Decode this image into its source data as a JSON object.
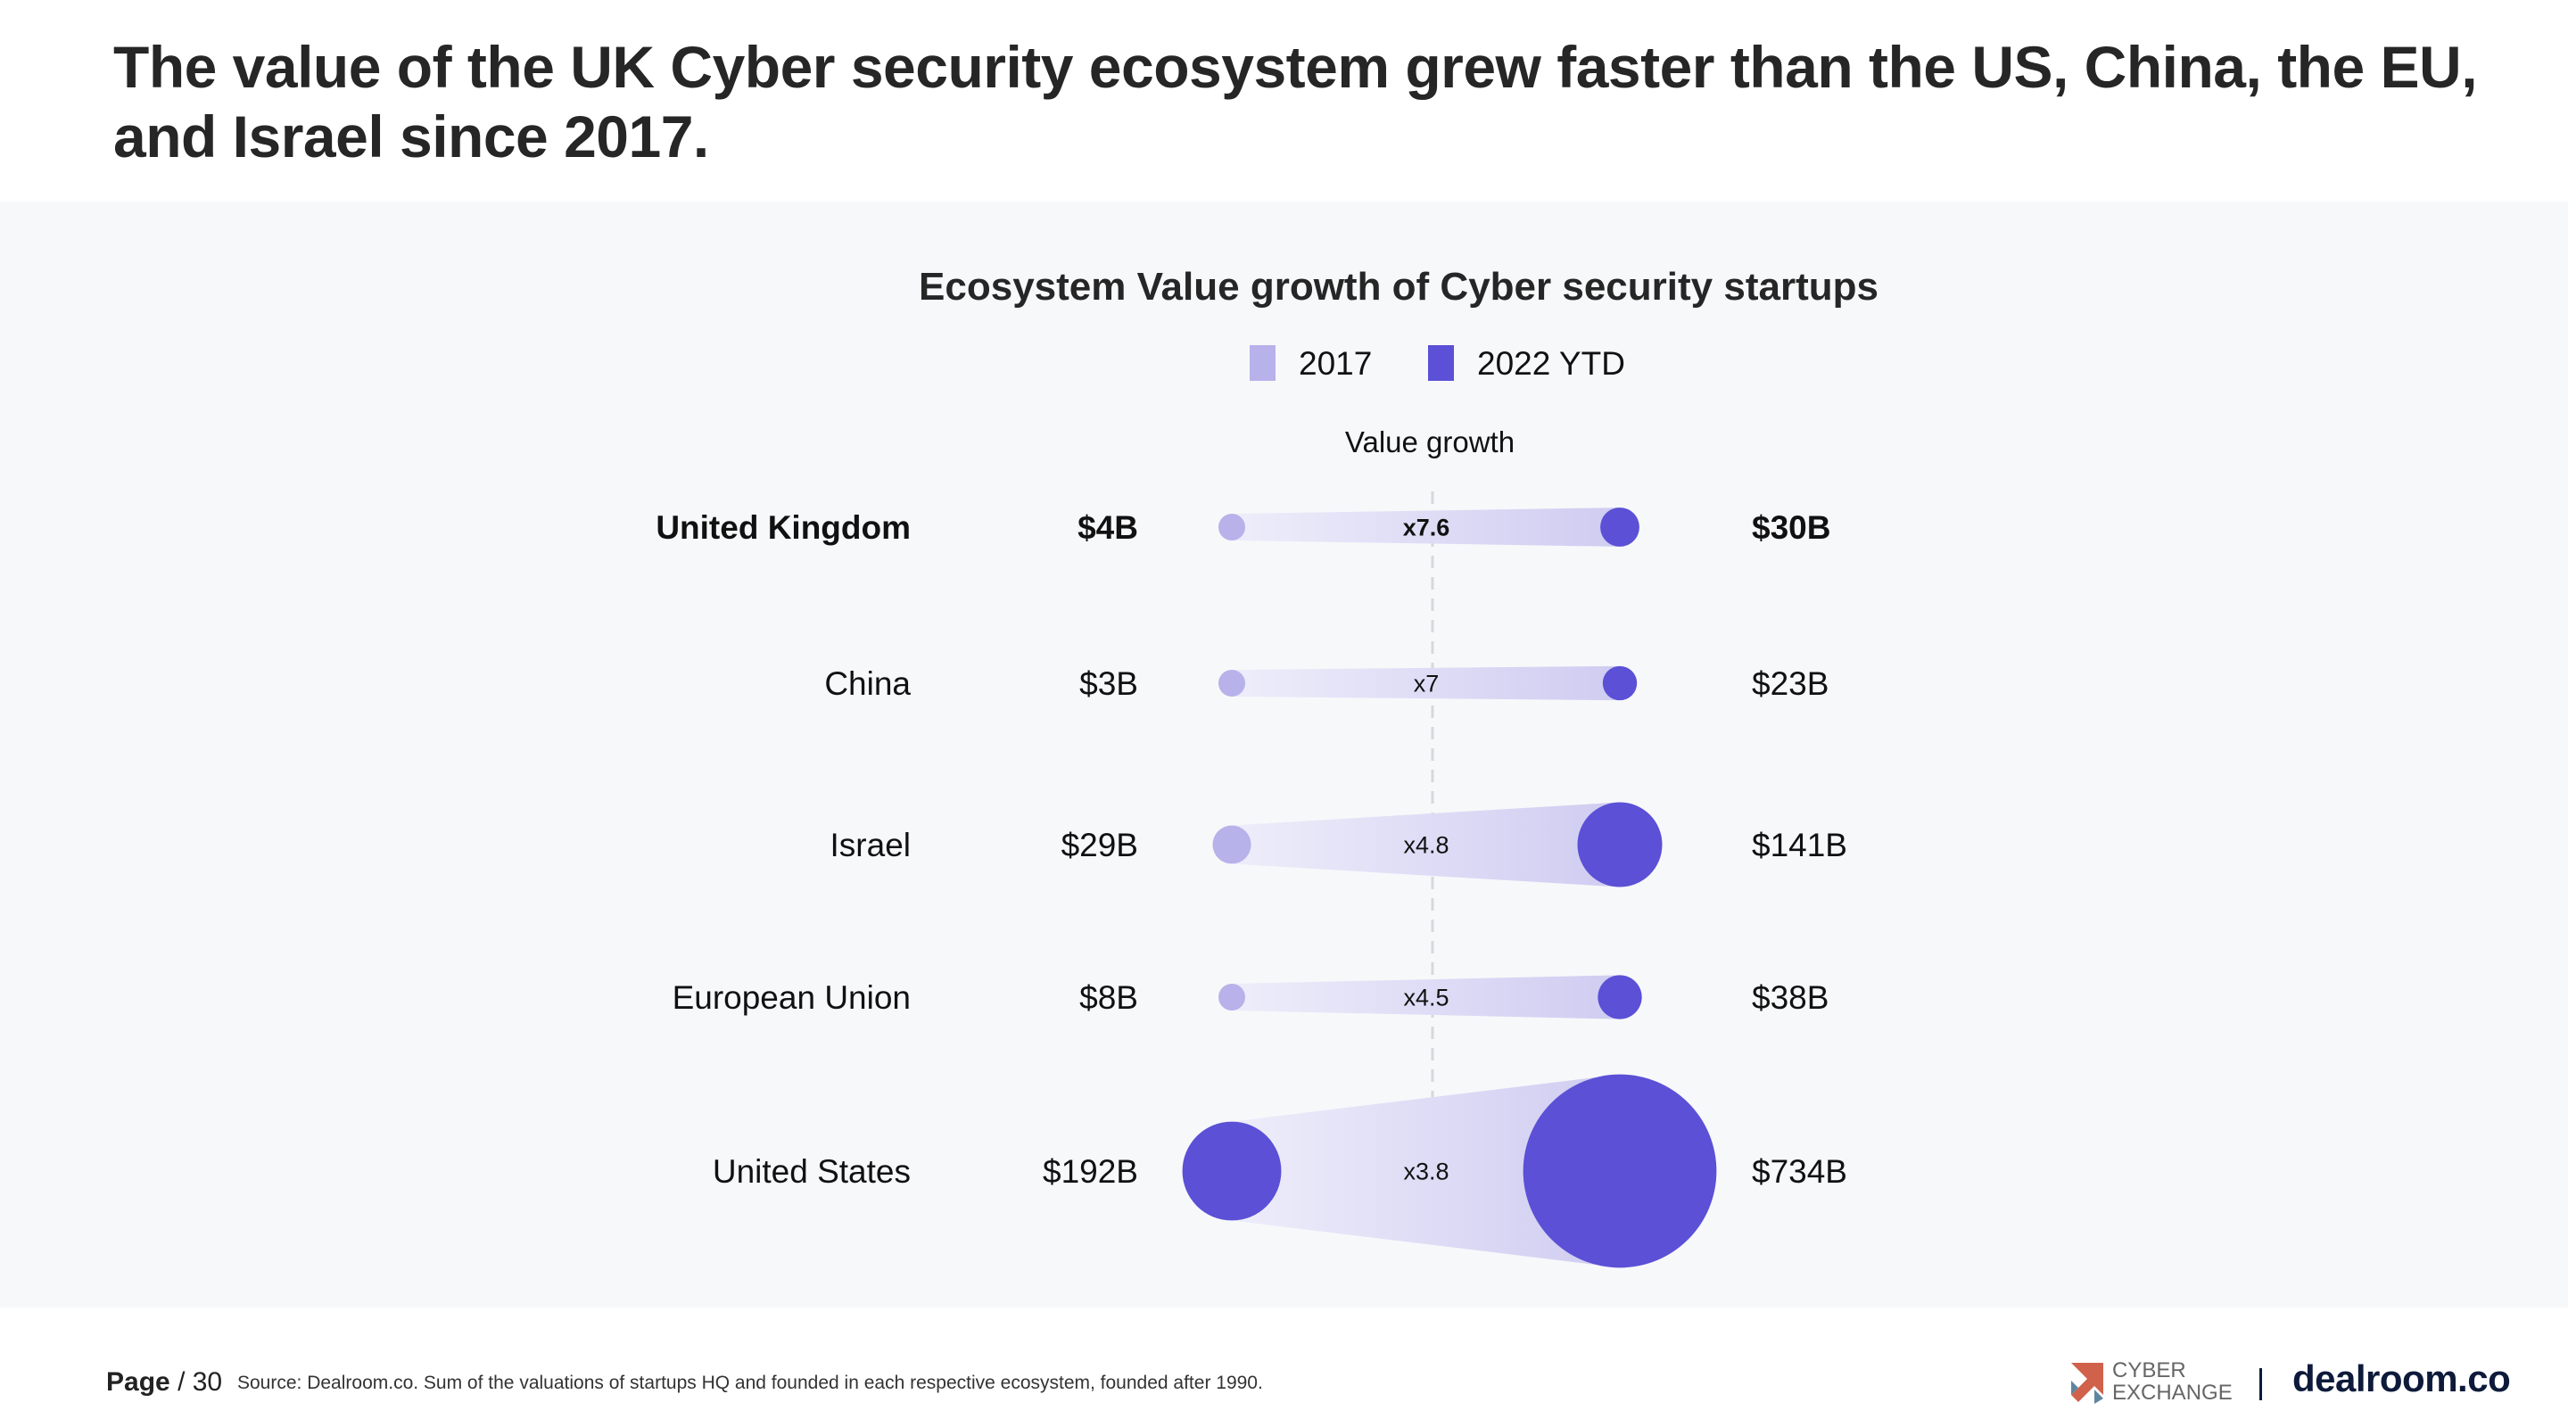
{
  "page": {
    "title": "The value of the UK Cyber security ecosystem grew faster than the US, China, the EU, and Israel since 2017.",
    "footer": {
      "page_label": "Page",
      "page_number": "/ 30",
      "source": "Source: Dealroom.co. Sum of the valuations of startups HQ and founded in each respective ecosystem,  founded after 1990."
    },
    "logos": {
      "cyber_exchange_line1": "CYBER",
      "cyber_exchange_line2": "EXCHANGE",
      "dealroom": "dealroom.co"
    }
  },
  "chart_data": {
    "type": "dumbbell",
    "title": "Ecosystem Value growth of Cyber security startups",
    "growth_header": "Value growth",
    "legend": {
      "placement": "top-center",
      "entries": [
        {
          "label": "2017",
          "color": "#b7b2ea"
        },
        {
          "label": "2022 YTD",
          "color": "#5b50d6"
        }
      ]
    },
    "categories": [
      "United Kingdom",
      "China",
      "Israel",
      "European Union",
      "United States"
    ],
    "highlight": "United Kingdom",
    "series": [
      {
        "name": "2017",
        "values": [
          4,
          3,
          29,
          8,
          192
        ],
        "labels": [
          "$4B",
          "$3B",
          "$29B",
          "$8B",
          "$192B"
        ]
      },
      {
        "name": "2022 YTD",
        "values": [
          30,
          23,
          141,
          38,
          734
        ],
        "labels": [
          "$30B",
          "$23B",
          "$141B",
          "$38B",
          "$734B"
        ]
      }
    ],
    "growth_labels": [
      "x7.6",
      "x7",
      "x4.8",
      "x4.5",
      "x3.8"
    ],
    "unit": "USD billions"
  }
}
